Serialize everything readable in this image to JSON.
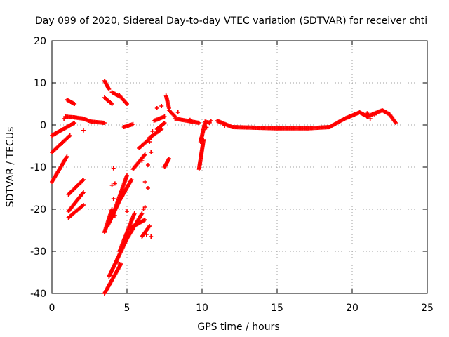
{
  "chart_data": {
    "type": "scatter",
    "title": "Day 099 of 2020, Sidereal Day-to-day VTEC variation (SDTVAR) for receiver chti",
    "xlabel": "GPS time / hours",
    "ylabel": "SDTVAR / TECUs",
    "xlim": [
      0,
      25
    ],
    "ylim": [
      -40,
      20
    ],
    "x_ticks": [
      0,
      5,
      10,
      15,
      20,
      25
    ],
    "y_ticks": [
      -40,
      -30,
      -20,
      -10,
      0,
      10,
      20
    ],
    "x_tick_labels": [
      "0",
      "5",
      "10",
      "15",
      "20",
      "25"
    ],
    "y_tick_labels": [
      "-40",
      "-30",
      "-20",
      "-10",
      "0",
      "10",
      "20"
    ],
    "grid": true,
    "marker": "+",
    "marker_color": "#ff0000",
    "series": [
      {
        "name": "SDTVAR",
        "segments": [
          {
            "x": [
              0.0,
              0.5,
              1.0
            ],
            "y": [
              -2.5,
              -1.5,
              -0.5
            ]
          },
          {
            "x": [
              0.0,
              0.6,
              1.2
            ],
            "y": [
              -6.5,
              -4.5,
              -2.5
            ]
          },
          {
            "x": [
              0.0,
              0.5,
              1.0
            ],
            "y": [
              -13.5,
              -10.5,
              -7.5
            ]
          },
          {
            "x": [
              0.9,
              1.5,
              2.1
            ],
            "y": [
              2.0,
              1.8,
              1.5
            ]
          },
          {
            "x": [
              2.1,
              2.6,
              3.5
            ],
            "y": [
              1.5,
              0.8,
              0.5
            ]
          },
          {
            "x": [
              1.0,
              1.5
            ],
            "y": [
              6.0,
              5.0
            ]
          },
          {
            "x": [
              1.0,
              1.5
            ],
            "y": [
              -0.5,
              0.5
            ]
          },
          {
            "x": [
              1.1,
              2.1
            ],
            "y": [
              -16.5,
              -13.0
            ]
          },
          {
            "x": [
              1.1,
              2.1
            ],
            "y": [
              -20.5,
              -16.0
            ]
          },
          {
            "x": [
              1.1,
              2.1
            ],
            "y": [
              -22.0,
              -19.0
            ]
          },
          {
            "x": [
              3.5,
              3.8
            ],
            "y": [
              10.5,
              8.5
            ]
          },
          {
            "x": [
              3.5,
              4.0
            ],
            "y": [
              6.5,
              5.0
            ]
          },
          {
            "x": [
              4.0,
              4.5
            ],
            "y": [
              7.8,
              6.8
            ]
          },
          {
            "x": [
              4.5,
              5.0
            ],
            "y": [
              7.0,
              5.0
            ]
          },
          {
            "x": [
              3.5,
              4.0
            ],
            "y": [
              -25.5,
              -20.0
            ]
          },
          {
            "x": [
              3.7,
              4.5
            ],
            "y": [
              -24.0,
              -18.0
            ]
          },
          {
            "x": [
              4.0,
              5.0
            ],
            "y": [
              -22.0,
              -12.0
            ]
          },
          {
            "x": [
              4.5,
              5.3
            ],
            "y": [
              -18.0,
              -13.0
            ]
          },
          {
            "x": [
              3.5,
              4.6
            ],
            "y": [
              -40.0,
              -33.0
            ]
          },
          {
            "x": [
              3.8,
              5.0
            ],
            "y": [
              -36.0,
              -27.0
            ]
          },
          {
            "x": [
              4.5,
              5.5
            ],
            "y": [
              -30.0,
              -21.0
            ]
          },
          {
            "x": [
              5.0,
              6.0
            ],
            "y": [
              -27.0,
              -21.0
            ]
          },
          {
            "x": [
              5.2,
              6.2
            ],
            "y": [
              -24.5,
              -22.5
            ]
          },
          {
            "x": [
              6.0,
              6.5
            ],
            "y": [
              -26.5,
              -24.0
            ]
          },
          {
            "x": [
              4.8,
              5.4
            ],
            "y": [
              -0.5,
              0.2
            ]
          },
          {
            "x": [
              5.4,
              6.2
            ],
            "y": [
              -10.5,
              -7.0
            ]
          },
          {
            "x": [
              5.8,
              6.6
            ],
            "y": [
              -5.5,
              -3.0
            ]
          },
          {
            "x": [
              6.5,
              7.3
            ],
            "y": [
              -3.0,
              -1.0
            ]
          },
          {
            "x": [
              6.8,
              7.5
            ],
            "y": [
              1.0,
              2.0
            ]
          },
          {
            "x": [
              7.0,
              7.5
            ],
            "y": [
              -1.0,
              0.5
            ]
          },
          {
            "x": [
              7.6,
              7.8
            ],
            "y": [
              7.0,
              4.0
            ]
          },
          {
            "x": [
              7.8,
              8.2
            ],
            "y": [
              3.5,
              2.0
            ]
          },
          {
            "x": [
              7.5,
              7.8
            ],
            "y": [
              -10.0,
              -8.0
            ]
          },
          {
            "x": [
              8.2,
              9.8
            ],
            "y": [
              1.5,
              0.5
            ]
          },
          {
            "x": [
              9.8,
              10.1
            ],
            "y": [
              -10.5,
              -3.5
            ]
          },
          {
            "x": [
              9.9,
              10.2
            ],
            "y": [
              -4.0,
              0.5
            ]
          },
          {
            "x": [
              10.2,
              10.5
            ],
            "y": [
              0.8,
              0.5
            ]
          },
          {
            "x": [
              11.0,
              12.0
            ],
            "y": [
              1.0,
              -0.5
            ]
          },
          {
            "x": [
              12.0,
              15.0,
              17.0
            ],
            "y": [
              -0.5,
              -0.8,
              -0.8
            ]
          },
          {
            "x": [
              17.0,
              18.5,
              19.5
            ],
            "y": [
              -0.8,
              -0.5,
              1.5
            ]
          },
          {
            "x": [
              19.5,
              20.5
            ],
            "y": [
              1.5,
              3.0
            ]
          },
          {
            "x": [
              20.5,
              21.0
            ],
            "y": [
              3.0,
              2.0
            ]
          },
          {
            "x": [
              21.0,
              22.0
            ],
            "y": [
              2.0,
              3.5
            ]
          },
          {
            "x": [
              22.0,
              22.5,
              22.9
            ],
            "y": [
              3.5,
              2.5,
              0.5
            ]
          }
        ],
        "points": [
          {
            "x": 0.8,
            "y": 1.5
          },
          {
            "x": 2.1,
            "y": -1.3
          },
          {
            "x": 4.1,
            "y": -10.3
          },
          {
            "x": 4.0,
            "y": -14.3
          },
          {
            "x": 4.2,
            "y": -13.9
          },
          {
            "x": 4.1,
            "y": -17.5
          },
          {
            "x": 4.2,
            "y": -20.0
          },
          {
            "x": 4.2,
            "y": -21.5
          },
          {
            "x": 4.3,
            "y": -32.5
          },
          {
            "x": 4.5,
            "y": -33.0
          },
          {
            "x": 5.0,
            "y": -20.5
          },
          {
            "x": 5.3,
            "y": -22.5
          },
          {
            "x": 6.1,
            "y": -20.0
          },
          {
            "x": 6.3,
            "y": -26.0
          },
          {
            "x": 6.4,
            "y": -15.0
          },
          {
            "x": 6.2,
            "y": -19.5
          },
          {
            "x": 6.6,
            "y": -26.5
          },
          {
            "x": 6.2,
            "y": -13.5
          },
          {
            "x": 6.4,
            "y": -9.5
          },
          {
            "x": 6.0,
            "y": -8.5
          },
          {
            "x": 6.6,
            "y": -6.5
          },
          {
            "x": 6.5,
            "y": -4.0
          },
          {
            "x": 6.7,
            "y": -1.5
          },
          {
            "x": 7.0,
            "y": 4.0
          },
          {
            "x": 7.3,
            "y": 4.5
          },
          {
            "x": 8.4,
            "y": 3.0
          },
          {
            "x": 9.2,
            "y": 1.2
          },
          {
            "x": 10.3,
            "y": -0.6
          },
          {
            "x": 10.6,
            "y": 1.0
          },
          {
            "x": 11.5,
            "y": -0.2
          },
          {
            "x": 21.0,
            "y": 2.8
          },
          {
            "x": 21.2,
            "y": 1.5
          },
          {
            "x": 21.5,
            "y": 2.4
          }
        ]
      }
    ]
  }
}
